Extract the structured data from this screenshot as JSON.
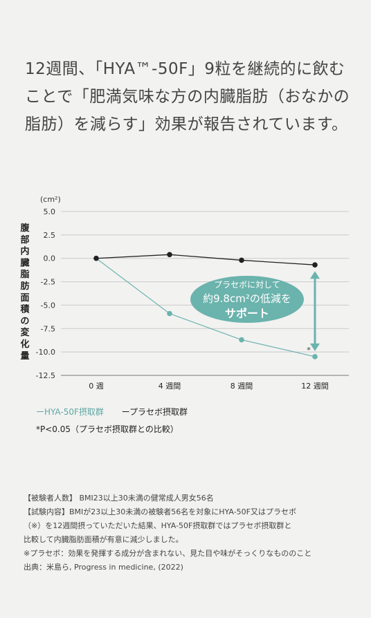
{
  "headline": [
    "12週間、「HYA™-50F」9粒を継続的に飲む",
    "ことで「肥満気味な方の内臓脂肪（おなかの",
    "脂肪）を減らす」効果が報告されています。"
  ],
  "chart_data": {
    "type": "line",
    "unit_label": "(cm²)",
    "ylabel": "腹部内臓脂肪面積の変化量",
    "categories": [
      "0 週",
      "4 週間",
      "8 週間",
      "12 週間"
    ],
    "ylim": [
      -12.5,
      5.0
    ],
    "yticks": [
      "5.0",
      "2.5",
      "0.0",
      "-2.5",
      "-5.0",
      "-7.5",
      "-10.0",
      "-12.5"
    ],
    "ytick_values": [
      5.0,
      2.5,
      0.0,
      -2.5,
      -5.0,
      -7.5,
      -10.0,
      -12.5
    ],
    "grid": true,
    "series": [
      {
        "name": "HYA-50F摂取群",
        "color": "#6bb3ad",
        "values": [
          0.0,
          -5.9,
          -8.7,
          -10.5
        ]
      },
      {
        "name": "プラセボ摂取群",
        "color": "#222222",
        "values": [
          0.0,
          0.4,
          -0.2,
          -0.7
        ]
      }
    ],
    "annotation": {
      "line1": "プラセボに対して",
      "line2": "約9.8cm²の低減を",
      "line3": "サポート",
      "marker": "*",
      "color": "#6bb3ad"
    }
  },
  "legend": {
    "hya": "ーHYA-50F摂取群",
    "placebo": "ープラセボ摂取群"
  },
  "pnote": "*P<0.05（プラセボ摂取群との比較）",
  "notes": [
    "【被験者人数】 BMI23以上30未満の健常成人男女56名",
    "【試験内容】BMIが23以上30未満の被験者56名を対象にHYA-50F又はプラセボ",
    "（※）を12週間摂っていただいた結果、HYA-50F摂取群ではプラセボ摂取群と",
    "比較して内臓脂肪面積が有意に減少しました。",
    "※プラセボ：効果を発揮する成分が含まれない、見た目や味がそっくりなもののこと",
    "出典：米島ら, Progress in medicine, (2022)"
  ]
}
